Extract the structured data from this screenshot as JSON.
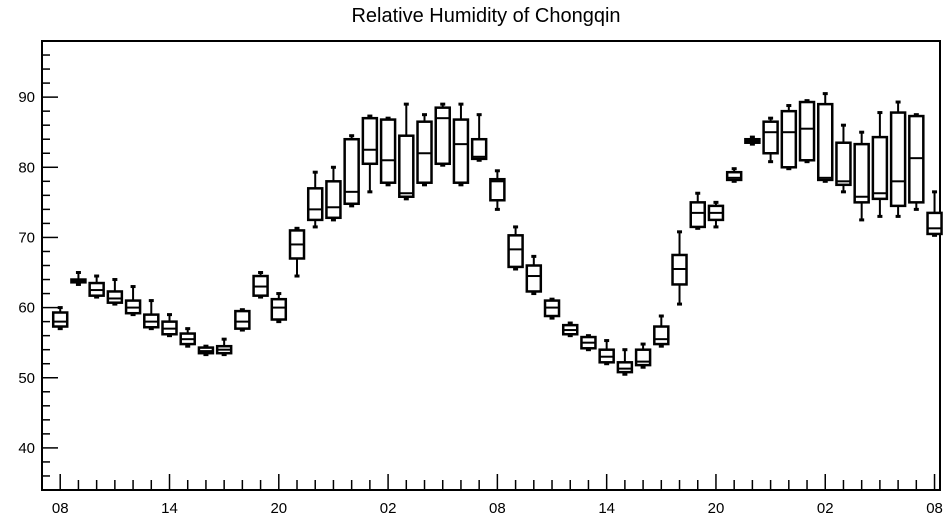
{
  "chart_data": {
    "type": "boxplot",
    "title": "Relative Humidity of Chongqin",
    "xlabel": "",
    "ylabel": "",
    "ylim": [
      34,
      98
    ],
    "y_ticks": [
      40,
      50,
      60,
      70,
      80,
      90
    ],
    "x_tick_labels": [
      "08",
      "14",
      "20",
      "02",
      "08",
      "14",
      "20",
      "02",
      "08"
    ],
    "x_tick_hours": [
      0,
      6,
      12,
      18,
      24,
      30,
      36,
      42,
      48
    ],
    "x_range_hours": [
      -1,
      48.3
    ],
    "grid": false,
    "legend": "none",
    "series": [
      {
        "boxes": [
          {
            "hour": 0,
            "low": 57.0,
            "q1": 57.3,
            "median": 58.0,
            "q3": 59.3,
            "high": 60.0
          },
          {
            "hour": 1,
            "low": 63.3,
            "q1": 63.6,
            "median": 63.8,
            "q3": 64.0,
            "high": 65.0
          },
          {
            "hour": 2,
            "low": 61.5,
            "q1": 61.7,
            "median": 62.5,
            "q3": 63.5,
            "high": 64.5
          },
          {
            "hour": 3,
            "low": 60.5,
            "q1": 60.7,
            "median": 61.3,
            "q3": 62.3,
            "high": 64.0
          },
          {
            "hour": 4,
            "low": 59.0,
            "q1": 59.2,
            "median": 60.0,
            "q3": 61.0,
            "high": 63.0
          },
          {
            "hour": 5,
            "low": 57.0,
            "q1": 57.2,
            "median": 58.0,
            "q3": 59.0,
            "high": 61.0
          },
          {
            "hour": 6,
            "low": 56.0,
            "q1": 56.2,
            "median": 57.0,
            "q3": 58.0,
            "high": 59.0
          },
          {
            "hour": 7,
            "low": 54.5,
            "q1": 54.8,
            "median": 55.5,
            "q3": 56.3,
            "high": 57.0
          },
          {
            "hour": 8,
            "low": 53.3,
            "q1": 53.5,
            "median": 53.8,
            "q3": 54.3,
            "high": 54.5
          },
          {
            "hour": 9,
            "low": 53.3,
            "q1": 53.5,
            "median": 54.0,
            "q3": 54.5,
            "high": 55.5
          },
          {
            "hour": 10,
            "low": 56.8,
            "q1": 57.0,
            "median": 58.0,
            "q3": 59.5,
            "high": 59.7
          },
          {
            "hour": 11,
            "low": 61.5,
            "q1": 61.7,
            "median": 63.0,
            "q3": 64.5,
            "high": 65.0
          },
          {
            "hour": 12,
            "low": 58.0,
            "q1": 58.3,
            "median": 60.0,
            "q3": 61.2,
            "high": 62.0
          },
          {
            "hour": 13,
            "low": 64.5,
            "q1": 67.0,
            "median": 69.0,
            "q3": 71.0,
            "high": 71.3
          },
          {
            "hour": 14,
            "low": 71.5,
            "q1": 72.5,
            "median": 74.0,
            "q3": 77.0,
            "high": 79.3
          },
          {
            "hour": 15,
            "low": 72.5,
            "q1": 72.8,
            "median": 74.3,
            "q3": 78.0,
            "high": 80.0
          },
          {
            "hour": 16,
            "low": 74.5,
            "q1": 74.8,
            "median": 76.5,
            "q3": 84.0,
            "high": 84.5
          },
          {
            "hour": 17,
            "low": 76.5,
            "q1": 80.5,
            "median": 82.5,
            "q3": 87.0,
            "high": 87.3
          },
          {
            "hour": 18,
            "low": 77.5,
            "q1": 77.8,
            "median": 81.0,
            "q3": 86.8,
            "high": 87.0
          },
          {
            "hour": 19,
            "low": 75.5,
            "q1": 75.8,
            "median": 76.3,
            "q3": 84.5,
            "high": 89.0
          },
          {
            "hour": 20,
            "low": 77.5,
            "q1": 77.8,
            "median": 82.0,
            "q3": 86.5,
            "high": 87.5
          },
          {
            "hour": 21,
            "low": 80.3,
            "q1": 80.5,
            "median": 87.0,
            "q3": 88.5,
            "high": 89.0
          },
          {
            "hour": 22,
            "low": 77.5,
            "q1": 77.8,
            "median": 83.3,
            "q3": 86.8,
            "high": 89.0
          },
          {
            "hour": 23,
            "low": 81.0,
            "q1": 81.2,
            "median": 81.5,
            "q3": 84.0,
            "high": 87.5
          },
          {
            "hour": 24,
            "low": 74.0,
            "q1": 75.3,
            "median": 78.0,
            "q3": 78.3,
            "high": 79.5
          },
          {
            "hour": 25,
            "low": 65.5,
            "q1": 65.8,
            "median": 68.3,
            "q3": 70.3,
            "high": 71.5
          },
          {
            "hour": 26,
            "low": 62.0,
            "q1": 62.3,
            "median": 64.5,
            "q3": 66.0,
            "high": 67.3
          },
          {
            "hour": 27,
            "low": 58.5,
            "q1": 58.8,
            "median": 60.0,
            "q3": 61.0,
            "high": 61.2
          },
          {
            "hour": 28,
            "low": 56.0,
            "q1": 56.2,
            "median": 56.8,
            "q3": 57.5,
            "high": 57.8
          },
          {
            "hour": 29,
            "low": 54.0,
            "q1": 54.2,
            "median": 55.0,
            "q3": 55.8,
            "high": 56.0
          },
          {
            "hour": 30,
            "low": 52.0,
            "q1": 52.2,
            "median": 53.0,
            "q3": 54.0,
            "high": 55.3
          },
          {
            "hour": 31,
            "low": 50.5,
            "q1": 50.8,
            "median": 51.3,
            "q3": 52.2,
            "high": 54.0
          },
          {
            "hour": 32,
            "low": 51.5,
            "q1": 51.8,
            "median": 52.3,
            "q3": 54.0,
            "high": 54.8
          },
          {
            "hour": 33,
            "low": 54.5,
            "q1": 54.8,
            "median": 55.5,
            "q3": 57.3,
            "high": 58.8
          },
          {
            "hour": 34,
            "low": 60.5,
            "q1": 63.3,
            "median": 65.5,
            "q3": 67.5,
            "high": 70.8
          },
          {
            "hour": 35,
            "low": 71.3,
            "q1": 71.5,
            "median": 73.5,
            "q3": 75.0,
            "high": 76.3
          },
          {
            "hour": 36,
            "low": 71.5,
            "q1": 72.5,
            "median": 73.5,
            "q3": 74.5,
            "high": 75.0
          },
          {
            "hour": 37,
            "low": 78.0,
            "q1": 78.2,
            "median": 78.5,
            "q3": 79.3,
            "high": 79.8
          },
          {
            "hour": 38,
            "low": 83.3,
            "q1": 83.5,
            "median": 83.8,
            "q3": 84.0,
            "high": 84.3
          },
          {
            "hour": 39,
            "low": 80.8,
            "q1": 82.0,
            "median": 85.0,
            "q3": 86.5,
            "high": 87.0
          },
          {
            "hour": 40,
            "low": 79.8,
            "q1": 80.0,
            "median": 85.0,
            "q3": 88.0,
            "high": 88.8
          },
          {
            "hour": 41,
            "low": 80.8,
            "q1": 81.0,
            "median": 85.5,
            "q3": 89.3,
            "high": 89.5
          },
          {
            "hour": 42,
            "low": 78.0,
            "q1": 78.2,
            "median": 78.5,
            "q3": 89.0,
            "high": 90.5
          },
          {
            "hour": 43,
            "low": 76.5,
            "q1": 77.5,
            "median": 78.0,
            "q3": 83.5,
            "high": 86.0
          },
          {
            "hour": 44,
            "low": 72.5,
            "q1": 75.0,
            "median": 75.8,
            "q3": 83.3,
            "high": 85.0
          },
          {
            "hour": 45,
            "low": 73.0,
            "q1": 75.5,
            "median": 76.3,
            "q3": 84.3,
            "high": 87.8
          },
          {
            "hour": 46,
            "low": 73.0,
            "q1": 74.5,
            "median": 78.0,
            "q3": 87.8,
            "high": 89.3
          },
          {
            "hour": 47,
            "low": 74.0,
            "q1": 75.0,
            "median": 81.3,
            "q3": 87.3,
            "high": 87.5
          },
          {
            "hour": 48,
            "low": 70.3,
            "q1": 70.5,
            "median": 71.3,
            "q3": 73.5,
            "high": 76.5
          }
        ]
      }
    ]
  }
}
